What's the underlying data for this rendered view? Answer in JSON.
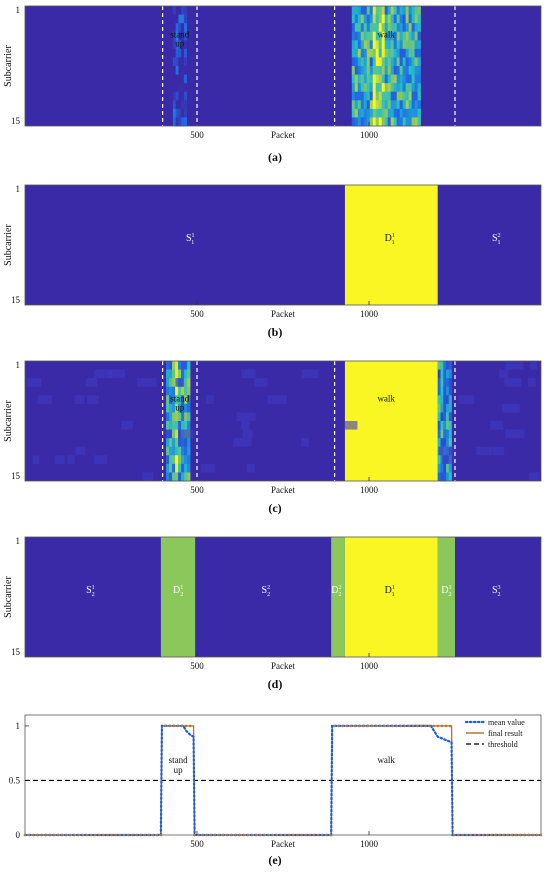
{
  "captions": [
    "(a)",
    "(b)",
    "(c)",
    "(d)",
    "(e)"
  ],
  "colors": {
    "background_blue": "#3b2aa8",
    "yellow": "#f9f623",
    "green": "#8bc75a",
    "cyan": "#27c0c8",
    "mean_line": "#1f5fd6",
    "final_line": "#b07a3b",
    "threshold_line": "#000000"
  },
  "chart_data": [
    {
      "id": "a",
      "type": "heatmap",
      "xlabel": "Packet",
      "ylabel": "Subcarrier",
      "x_ticks": [
        500,
        1000
      ],
      "y_ticks": [
        1,
        15
      ],
      "xlim": [
        0,
        1500
      ],
      "ylim": [
        1,
        15
      ],
      "boundaries": [
        400,
        500,
        900,
        1250
      ],
      "regions": [
        {
          "x0": 950,
          "x1": 1150,
          "level": "high",
          "note": "walk activity"
        },
        {
          "x0": 430,
          "x1": 470,
          "level": "low",
          "note": "stand up activity"
        }
      ],
      "annotations": [
        {
          "text": "stand up",
          "x": 450,
          "y": 4
        },
        {
          "text": "walk",
          "x": 1050,
          "y": 4
        }
      ]
    },
    {
      "id": "b",
      "type": "heatmap",
      "xlabel": "Packet",
      "ylabel": "Subcarrier",
      "x_ticks": [
        500,
        1000
      ],
      "y_ticks": [
        1,
        15
      ],
      "xlim": [
        0,
        1500
      ],
      "ylim": [
        1,
        15
      ],
      "segments": [
        {
          "x0": 0,
          "x1": 930,
          "fill": "blue",
          "label": "S",
          "sup": "1",
          "sub": "1"
        },
        {
          "x0": 930,
          "x1": 1200,
          "fill": "yellow",
          "label": "D",
          "sup": "1",
          "sub": "1"
        },
        {
          "x0": 1200,
          "x1": 1500,
          "fill": "blue",
          "label": "S",
          "sup": "2",
          "sub": "1"
        }
      ],
      "label_positions": [
        480,
        1060,
        1370
      ]
    },
    {
      "id": "c",
      "type": "heatmap",
      "xlabel": "Packet",
      "ylabel": "Subcarrier",
      "x_ticks": [
        500,
        1000
      ],
      "y_ticks": [
        1,
        15
      ],
      "xlim": [
        0,
        1500
      ],
      "ylim": [
        1,
        15
      ],
      "boundaries": [
        400,
        500,
        900,
        1250
      ],
      "segments": [
        {
          "x0": 930,
          "x1": 1200,
          "fill": "yellow"
        }
      ],
      "regions": [
        {
          "x0": 410,
          "x1": 480,
          "level": "high",
          "note": "stand up activity"
        },
        {
          "x0": 1200,
          "x1": 1240,
          "level": "medium",
          "note": "walk edge"
        }
      ],
      "annotations": [
        {
          "text": "stand up",
          "x": 450,
          "y": 5
        },
        {
          "text": "walk",
          "x": 1050,
          "y": 5
        }
      ]
    },
    {
      "id": "d",
      "type": "heatmap",
      "xlabel": "Packet",
      "ylabel": "Subcarrier",
      "x_ticks": [
        500,
        1000
      ],
      "y_ticks": [
        1,
        15
      ],
      "xlim": [
        0,
        1500
      ],
      "ylim": [
        1,
        15
      ],
      "segments": [
        {
          "x0": 0,
          "x1": 395,
          "fill": "blue",
          "label": "S",
          "sup": "1",
          "sub": "2"
        },
        {
          "x0": 395,
          "x1": 495,
          "fill": "green",
          "label": "D",
          "sup": "1",
          "sub": "2"
        },
        {
          "x0": 495,
          "x1": 890,
          "fill": "blue",
          "label": "S",
          "sup": "2",
          "sub": "2"
        },
        {
          "x0": 890,
          "x1": 930,
          "fill": "green",
          "label": "D",
          "sup": "2",
          "sub": "2"
        },
        {
          "x0": 930,
          "x1": 1200,
          "fill": "yellow",
          "label": "D",
          "sup": "1",
          "sub": "1"
        },
        {
          "x0": 1200,
          "x1": 1250,
          "fill": "green",
          "label": "D",
          "sup": "3",
          "sub": "2"
        },
        {
          "x0": 1250,
          "x1": 1500,
          "fill": "blue",
          "label": "S",
          "sup": "3",
          "sub": "2"
        }
      ],
      "label_positions": [
        190,
        445,
        700,
        905,
        1060,
        1225,
        1370
      ]
    },
    {
      "id": "e",
      "type": "line",
      "xlabel": "Packet",
      "ylabel": "",
      "x_ticks": [
        500,
        1000
      ],
      "y_ticks": [
        0,
        0.5,
        1
      ],
      "xlim": [
        0,
        1500
      ],
      "ylim": [
        0,
        1.1
      ],
      "legend": [
        "mean value",
        "final result",
        "threshold"
      ],
      "legend_position": "top-right",
      "series": [
        {
          "name": "mean value",
          "style": "dotted",
          "x": [
            0,
            395,
            398,
            460,
            470,
            480,
            490,
            493,
            890,
            893,
            1180,
            1190,
            1200,
            1240,
            1243,
            1500
          ],
          "y": [
            0,
            0,
            1,
            1,
            0.95,
            0.92,
            0.9,
            0,
            0,
            1,
            1,
            0.95,
            0.9,
            0.85,
            0,
            0
          ]
        },
        {
          "name": "final result",
          "style": "solid",
          "x": [
            0,
            395,
            398,
            490,
            493,
            890,
            893,
            1240,
            1243,
            1500
          ],
          "y": [
            0,
            0,
            1,
            1,
            0,
            0,
            1,
            1,
            0,
            0
          ]
        },
        {
          "name": "threshold",
          "style": "dashed",
          "x": [
            0,
            1500
          ],
          "y": [
            0.5,
            0.5
          ]
        }
      ],
      "annotations": [
        {
          "text": "stand up",
          "x": 445,
          "y": 0.55
        },
        {
          "text": "walk",
          "x": 1050,
          "y": 0.55
        }
      ]
    }
  ]
}
